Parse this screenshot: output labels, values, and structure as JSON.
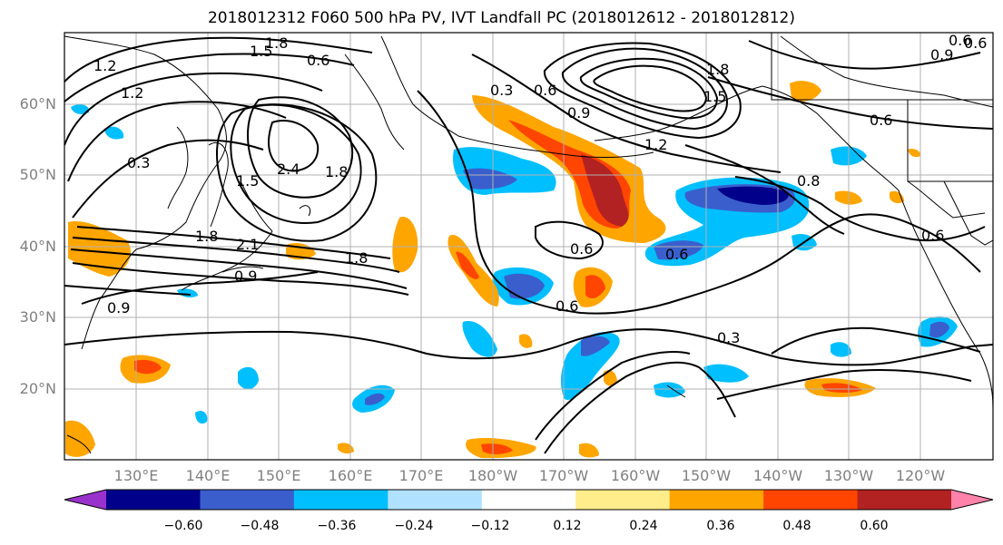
{
  "title": "2018012312 F060 500 hPa PV, IVT Landfall PC (2018012612 - 2018012812)",
  "lat_labels": [
    "60°N",
    "50°N",
    "40°N",
    "30°N",
    "20°N"
  ],
  "lon_labels": [
    "130°E",
    "140°E",
    "150°E",
    "160°E",
    "170°E",
    "180°W",
    "170°W",
    "160°W",
    "150°W",
    "140°W",
    "130°W",
    "120°W"
  ],
  "colorbar": {
    "ticks": [
      "−0.60",
      "−0.48",
      "−0.36",
      "−0.24",
      "−0.12",
      "0.12",
      "0.24",
      "0.36",
      "0.48",
      "0.60"
    ],
    "colors": [
      "#9932cc",
      "#00008b",
      "#3a5fcd",
      "#00bfff",
      "#b0e2ff",
      "#ffffff",
      "#ffec8b",
      "#ffa500",
      "#ff4500",
      "#b22222",
      "#ff82ab"
    ]
  },
  "contour_labels": [
    "1.8",
    "1.5",
    "0.6",
    "1.2",
    "1.2",
    "0.3",
    "2.4",
    "1.8",
    "1.5",
    "1.8",
    "2.1",
    "1.8",
    "0.9",
    "0.9",
    "0.3",
    "0.6",
    "0.9",
    "1.2",
    "1.8",
    "1.5",
    "0.6",
    "0.9",
    "0.6",
    "0.6",
    "0.6",
    "0.8",
    "0.6",
    "0.6",
    "0.3",
    "0.6"
  ],
  "colors": {
    "contour": "#000000",
    "coast": "#000000",
    "grid": "#b0b0b0",
    "axis_label": "#808080"
  }
}
